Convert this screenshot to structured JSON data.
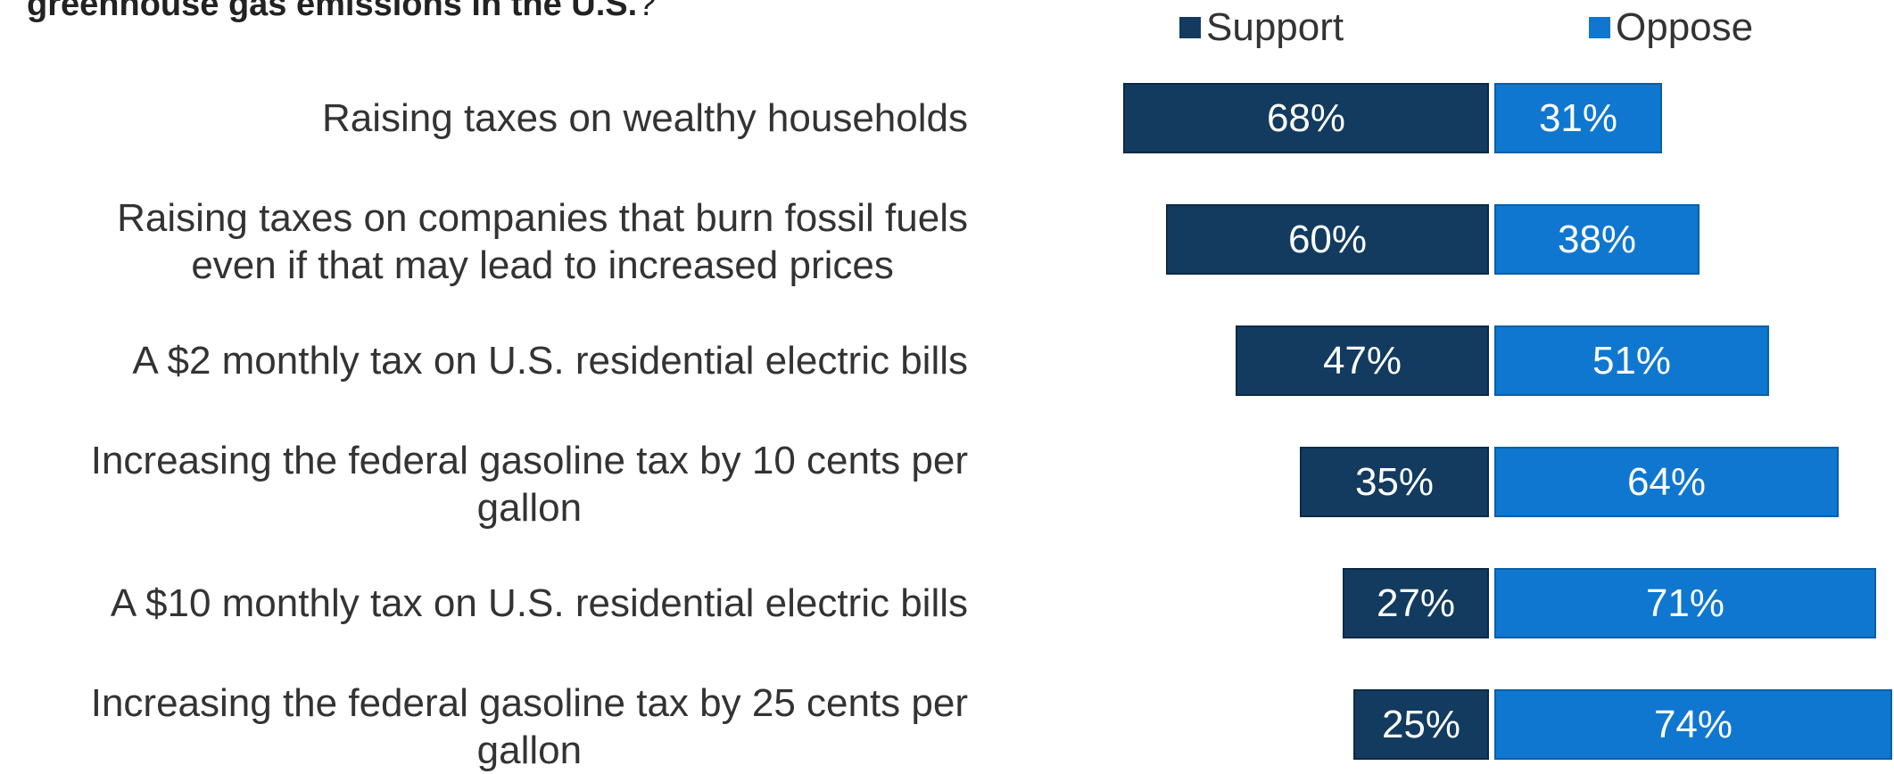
{
  "question": {
    "bold": "greenhouse gas emissions in the U.S.",
    "tail": "?"
  },
  "colors": {
    "support": "#123b5f",
    "oppose": "#0f77cf",
    "bar_border": "#0b2a45",
    "oppose_border": "#0a5fa8",
    "value_text": "#ffffff"
  },
  "chart_data": {
    "type": "bar",
    "orientation": "horizontal-diverging",
    "categories": [
      "Raising taxes on wealthy households",
      "Raising taxes on companies that burn fossil fuels even if that may lead to increased prices",
      "A $2 monthly tax on U.S. residential electric bills",
      "Increasing the federal gasoline tax by 10 cents per gallon",
      "A $10 monthly tax on U.S. residential electric bills",
      "Increasing the federal gasoline tax by 25 cents per gallon"
    ],
    "category_lines": [
      [
        "Raising taxes on wealthy households"
      ],
      [
        "Raising taxes on companies that burn fossil fuels",
        "even if that may lead to increased prices"
      ],
      [
        "A $2 monthly tax on U.S. residential electric bills"
      ],
      [
        "Increasing the federal gasoline tax by 10 cents per",
        "gallon"
      ],
      [
        "A $10 monthly tax on U.S. residential electric bills"
      ],
      [
        "Increasing the federal gasoline tax by 25 cents per",
        "gallon"
      ]
    ],
    "series": [
      {
        "name": "Support",
        "values": [
          68,
          60,
          47,
          35,
          27,
          25
        ]
      },
      {
        "name": "Oppose",
        "values": [
          31,
          38,
          51,
          64,
          71,
          74
        ]
      }
    ],
    "value_labels": {
      "Support": [
        "68%",
        "60%",
        "47%",
        "35%",
        "27%",
        "25%"
      ],
      "Oppose": [
        "31%",
        "38%",
        "51%",
        "64%",
        "71%",
        "74%"
      ]
    },
    "legend_position": "top",
    "grid": false
  }
}
